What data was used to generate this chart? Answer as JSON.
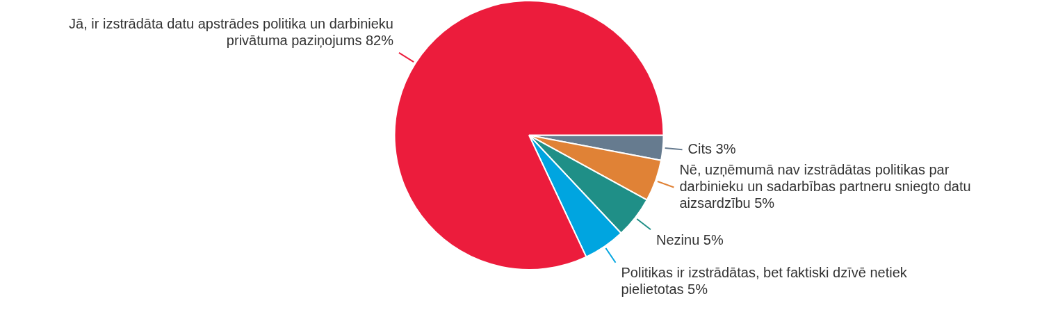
{
  "chart_data": {
    "type": "pie",
    "categories": [
      "Cits",
      "Nē, uzņēmumā nav izstrādātas politikas par darbinieku un sadarbības partneru sniegto datu aizsardzību",
      "Nezinu",
      "Politikas ir izstrādātas, bet faktiski dzīvē netiek pielietotas",
      "Jā, ir izstrādāta datu apstrādes politika un darbinieku privātuma paziņojums"
    ],
    "values": [
      3,
      5,
      5,
      5,
      82
    ],
    "colors": [
      "#667b8f",
      "#e08236",
      "#1f8f87",
      "#00a5e0",
      "#ec1c3c"
    ],
    "value_labels": [
      "3%",
      "5%",
      "5%",
      "5%",
      "82%"
    ]
  }
}
